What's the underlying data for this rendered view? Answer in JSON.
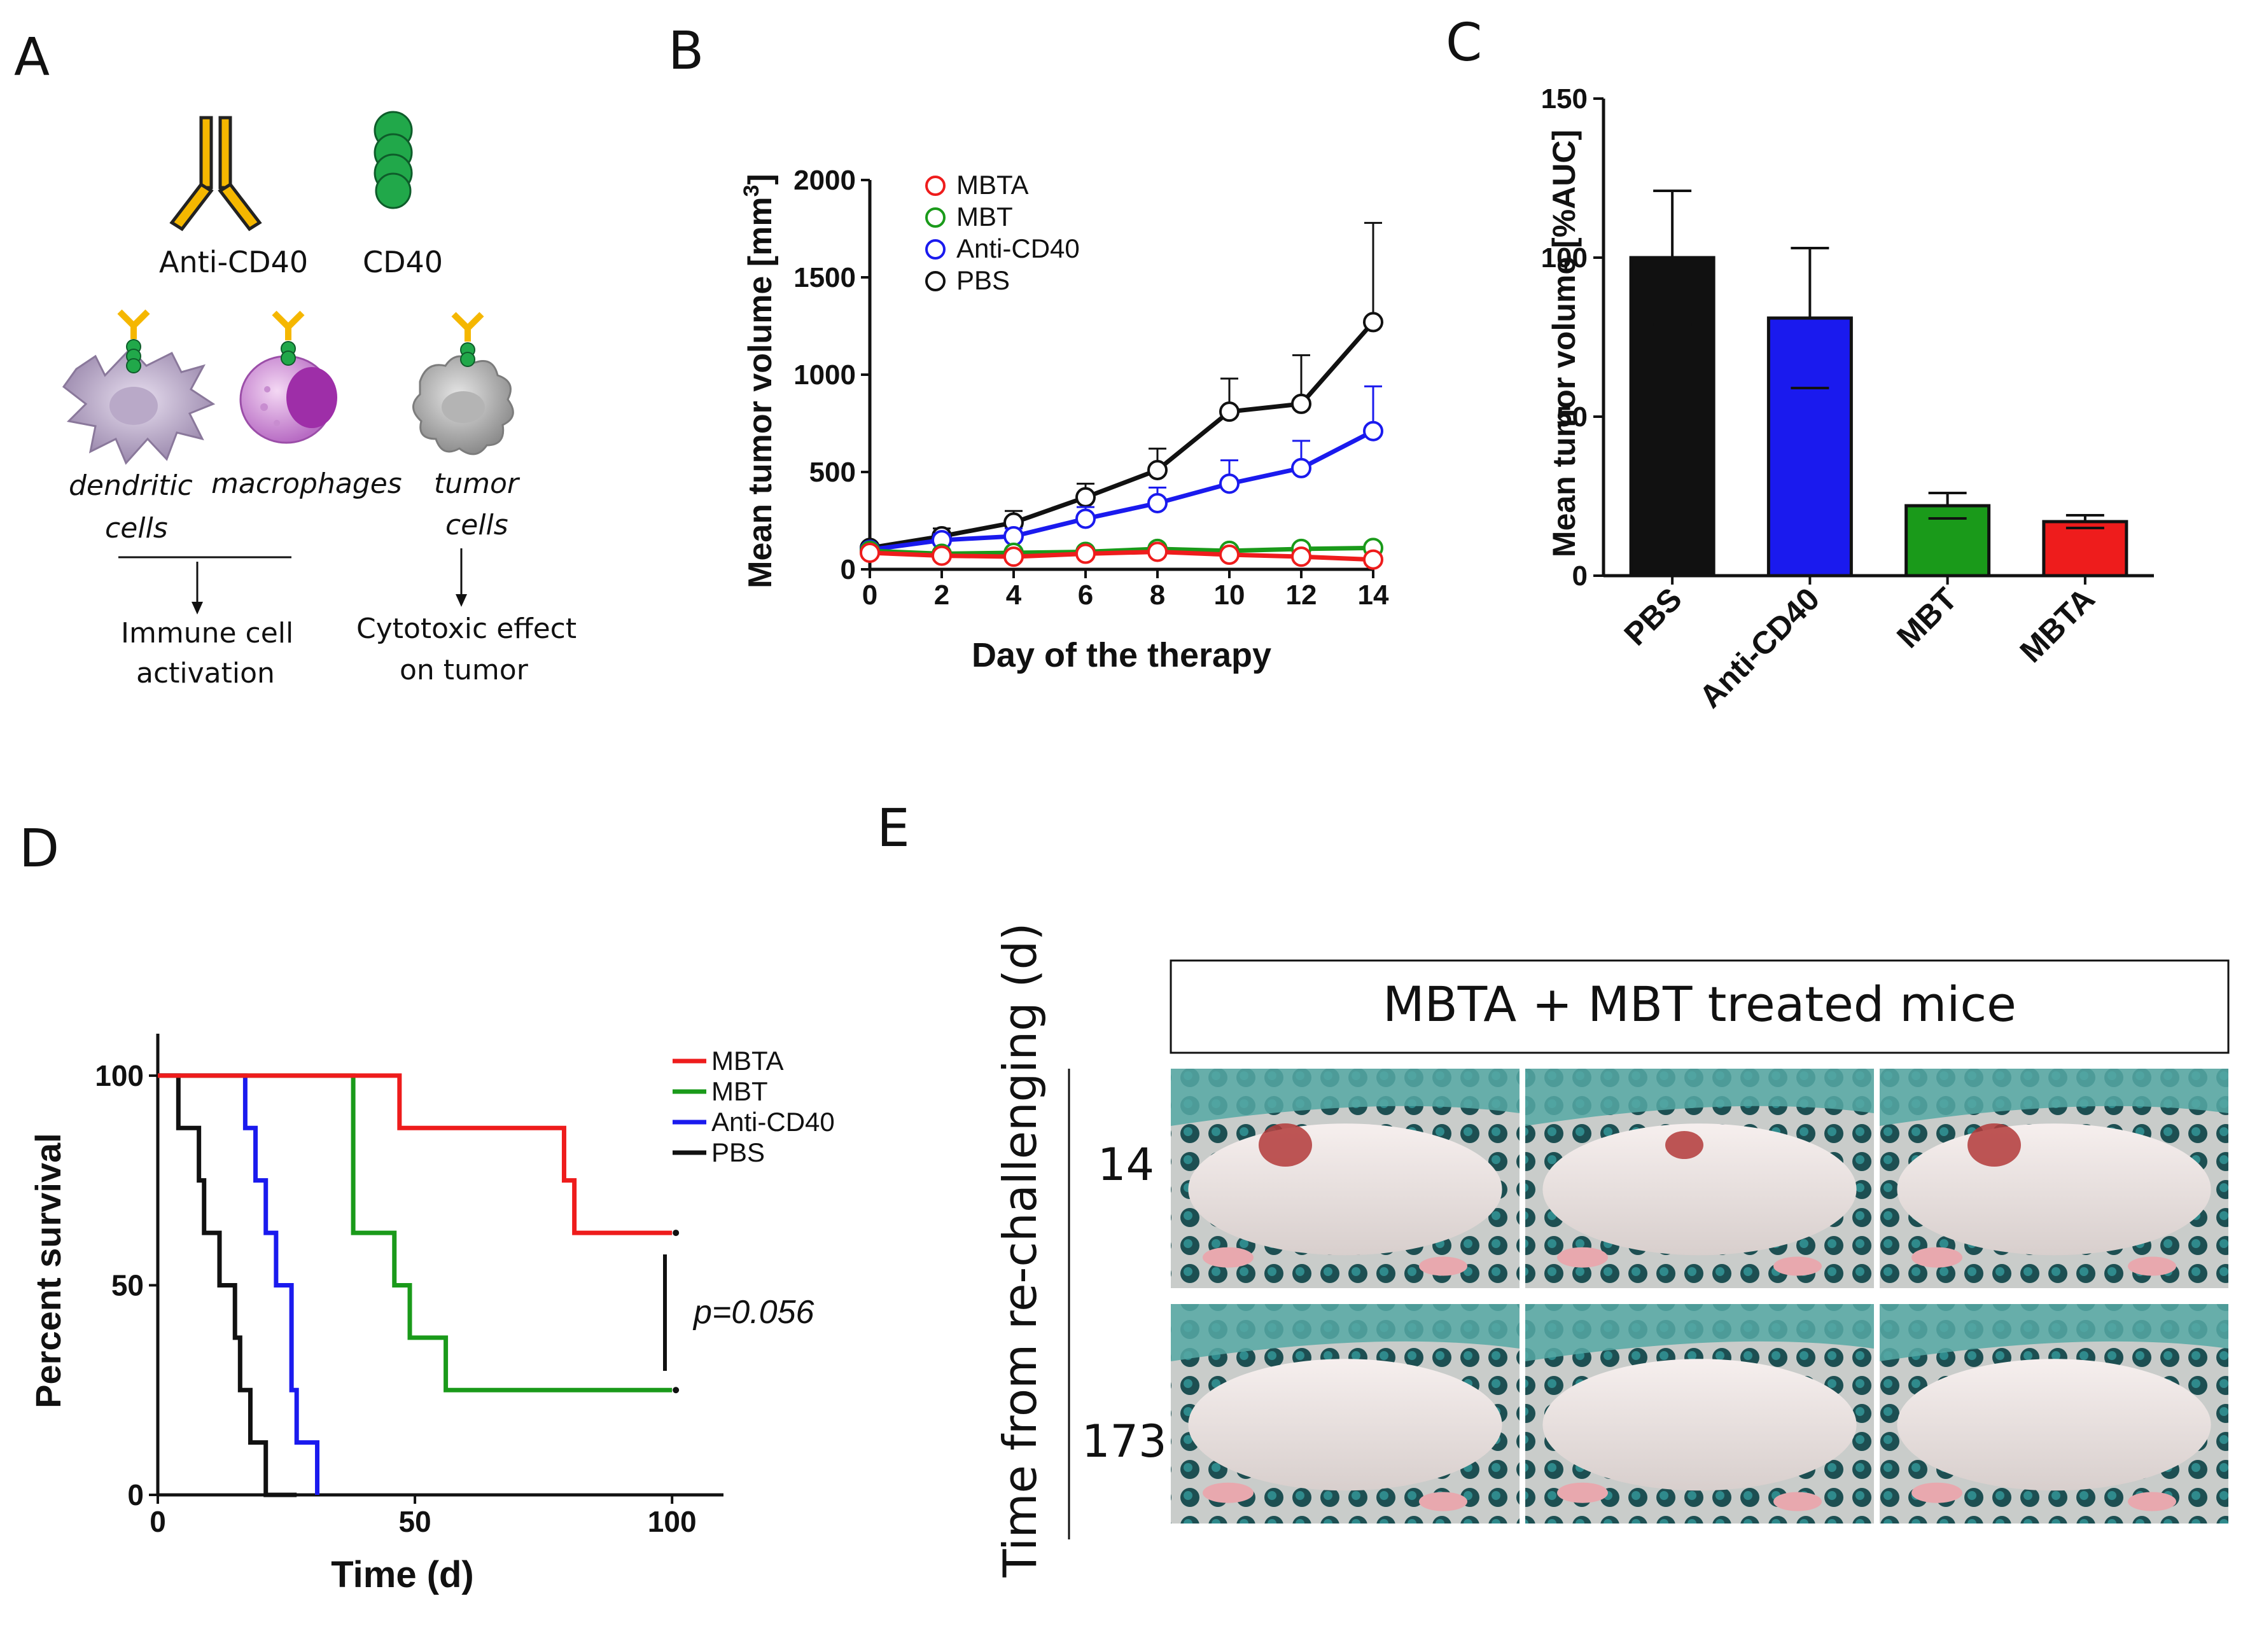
{
  "panels": {
    "a": {
      "letter": "A",
      "anti_label": "Anti-CD40",
      "cd40_label": "CD40",
      "cells": [
        "dendritic",
        "cells",
        "macrophages",
        "tumor",
        "cells"
      ],
      "immune_1": "Immune cell",
      "immune_2": "activation",
      "cyto_1": "Cytotoxic effect",
      "cyto_2": "on tumor"
    },
    "b": {
      "letter": "B"
    },
    "c": {
      "letter": "C"
    },
    "d": {
      "letter": "D",
      "pvalue": "p=0.056"
    },
    "e": {
      "letter": "E",
      "header": "MBTA + MBT treated mice",
      "yaxis": "Time from re-challenging (d)",
      "rows": [
        "14",
        "173"
      ]
    }
  },
  "colors": {
    "MBTA": "#ee1c1c",
    "MBT": "#1a9a1a",
    "Anti-CD40": "#1a1aee",
    "PBS": "#111111"
  },
  "chart_data": [
    {
      "id": "B",
      "type": "line",
      "xlabel": "Day of the therapy",
      "ylabel": "Mean tumor volume [mm³]",
      "ylabel_main": "Mean tumor volume [mm",
      "ylabel_sup": "3",
      "ylabel_end": "]",
      "xlim": [
        0,
        14
      ],
      "ylim": [
        0,
        2000
      ],
      "xticks": [
        "0",
        "2",
        "4",
        "6",
        "8",
        "10",
        "12",
        "14"
      ],
      "yticks": [
        "0",
        "500",
        "1000",
        "1500",
        "2000"
      ],
      "x": [
        0,
        2,
        4,
        6,
        8,
        10,
        12,
        14
      ],
      "series": [
        {
          "name": "MBTA",
          "values": [
            85,
            70,
            65,
            80,
            90,
            75,
            65,
            50
          ],
          "err": [
            10,
            10,
            10,
            15,
            20,
            15,
            15,
            10
          ]
        },
        {
          "name": "MBT",
          "values": [
            95,
            80,
            85,
            90,
            105,
            95,
            105,
            110
          ],
          "err": [
            10,
            10,
            10,
            15,
            15,
            15,
            15,
            15
          ]
        },
        {
          "name": "Anti-CD40",
          "values": [
            100,
            150,
            170,
            260,
            340,
            440,
            520,
            710
          ],
          "err": [
            15,
            30,
            40,
            60,
            80,
            120,
            140,
            230
          ]
        },
        {
          "name": "PBS",
          "values": [
            110,
            170,
            240,
            370,
            510,
            810,
            850,
            1270
          ],
          "err": [
            15,
            40,
            60,
            70,
            110,
            170,
            250,
            510
          ]
        }
      ],
      "legend": [
        "MBTA",
        "MBT",
        "Anti-CD40",
        "PBS"
      ]
    },
    {
      "id": "C",
      "type": "bar",
      "ylabel": "Mean tumor volume [%AUC]",
      "ylim": [
        0,
        150
      ],
      "yticks": [
        "0",
        "50",
        "100",
        "150"
      ],
      "categories": [
        "PBS",
        "Anti-CD40",
        "MBT",
        "MBTA"
      ],
      "values": [
        100,
        81,
        22,
        17
      ],
      "err": [
        21,
        22,
        4,
        2
      ]
    },
    {
      "id": "D",
      "type": "line",
      "xlabel": "Time (d)",
      "ylabel": "Percent survival",
      "xlim": [
        0,
        110
      ],
      "ylim": [
        0,
        110
      ],
      "xticks": [
        "0",
        "50",
        "100"
      ],
      "yticks": [
        "0",
        "50",
        "100"
      ],
      "series": [
        {
          "name": "MBTA",
          "x": [
            0,
            47,
            47,
            79,
            79,
            81,
            81,
            100
          ],
          "y": [
            100,
            100,
            87.5,
            87.5,
            75,
            75,
            62.5,
            62.5
          ]
        },
        {
          "name": "MBT",
          "x": [
            0,
            38,
            38,
            46,
            46,
            49,
            49,
            56,
            56,
            100
          ],
          "y": [
            100,
            100,
            62.5,
            62.5,
            50,
            50,
            37.5,
            37.5,
            25,
            25
          ]
        },
        {
          "name": "Anti-CD40",
          "x": [
            0,
            17,
            17,
            19,
            19,
            21,
            21,
            23,
            23,
            26,
            26,
            27,
            27,
            31,
            31
          ],
          "y": [
            100,
            100,
            87.5,
            87.5,
            75,
            75,
            62.5,
            62.5,
            50,
            50,
            25,
            25,
            12.5,
            12.5,
            0
          ]
        },
        {
          "name": "PBS",
          "x": [
            0,
            4,
            4,
            8,
            8,
            9,
            9,
            12,
            12,
            15,
            15,
            16,
            16,
            18,
            18,
            21,
            21,
            27,
            27
          ],
          "y": [
            100,
            100,
            87.5,
            87.5,
            75,
            75,
            62.5,
            62.5,
            50,
            50,
            37.5,
            37.5,
            25,
            25,
            12.5,
            12.5,
            0,
            0,
            0
          ]
        }
      ],
      "legend": [
        "MBTA",
        "MBT",
        "Anti-CD40",
        "PBS"
      ]
    }
  ]
}
